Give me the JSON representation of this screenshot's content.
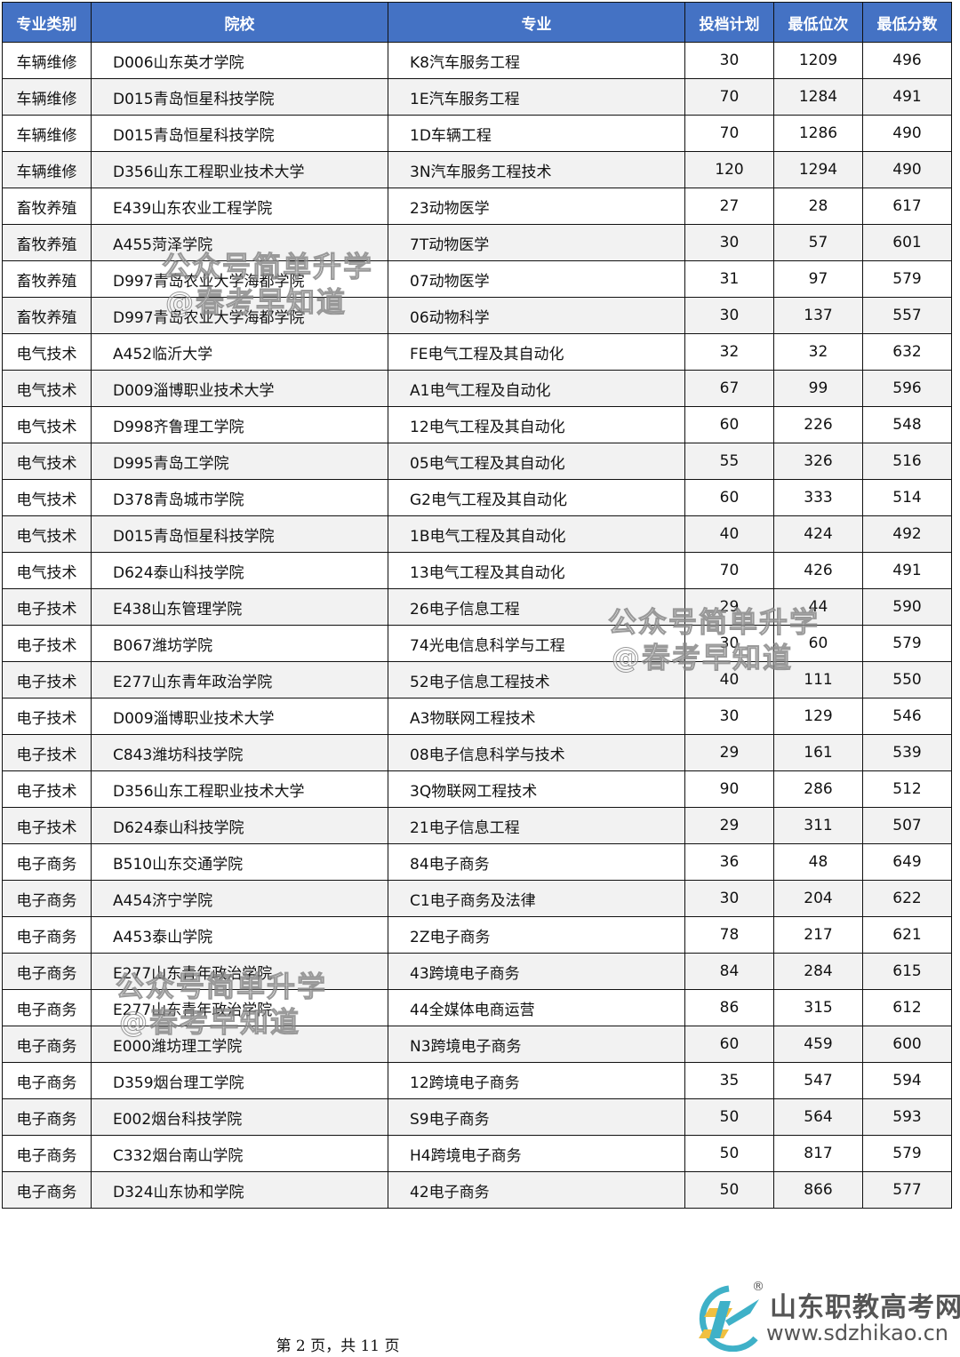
{
  "table": {
    "headers": [
      "专业类别",
      "院校",
      "专业",
      "投档计划",
      "最低位次",
      "最低分数"
    ],
    "rows": [
      [
        "车辆维修",
        "D006山东英才学院",
        "K8汽车服务工程",
        "30",
        "1209",
        "496"
      ],
      [
        "车辆维修",
        "D015青岛恒星科技学院",
        "1E汽车服务工程",
        "70",
        "1284",
        "491"
      ],
      [
        "车辆维修",
        "D015青岛恒星科技学院",
        "1D车辆工程",
        "70",
        "1286",
        "490"
      ],
      [
        "车辆维修",
        "D356山东工程职业技术大学",
        "3N汽车服务工程技术",
        "120",
        "1294",
        "490"
      ],
      [
        "畜牧养殖",
        "E439山东农业工程学院",
        "23动物医学",
        "27",
        "28",
        "617"
      ],
      [
        "畜牧养殖",
        "A455菏泽学院",
        "7T动物医学",
        "30",
        "57",
        "601"
      ],
      [
        "畜牧养殖",
        "D997青岛农业大学海都学院",
        "07动物医学",
        "31",
        "97",
        "579"
      ],
      [
        "畜牧养殖",
        "D997青岛农业大学海都学院",
        "06动物科学",
        "30",
        "137",
        "557"
      ],
      [
        "电气技术",
        "A452临沂大学",
        "FE电气工程及其自动化",
        "32",
        "32",
        "632"
      ],
      [
        "电气技术",
        "D009淄博职业技术大学",
        "A1电气工程及自动化",
        "67",
        "99",
        "596"
      ],
      [
        "电气技术",
        "D998齐鲁理工学院",
        "12电气工程及其自动化",
        "60",
        "226",
        "548"
      ],
      [
        "电气技术",
        "D995青岛工学院",
        "05电气工程及其自动化",
        "55",
        "326",
        "516"
      ],
      [
        "电气技术",
        "D378青岛城市学院",
        "G2电气工程及其自动化",
        "60",
        "333",
        "514"
      ],
      [
        "电气技术",
        "D015青岛恒星科技学院",
        "1B电气工程及其自动化",
        "40",
        "424",
        "492"
      ],
      [
        "电气技术",
        "D624泰山科技学院",
        "13电气工程及其自动化",
        "70",
        "426",
        "491"
      ],
      [
        "电子技术",
        "E438山东管理学院",
        "26电子信息工程",
        "29",
        "44",
        "590"
      ],
      [
        "电子技术",
        "B067潍坊学院",
        "74光电信息科学与工程",
        "30",
        "60",
        "579"
      ],
      [
        "电子技术",
        "E277山东青年政治学院",
        "52电子信息工程技术",
        "40",
        "111",
        "550"
      ],
      [
        "电子技术",
        "D009淄博职业技术大学",
        "A3物联网工程技术",
        "30",
        "129",
        "546"
      ],
      [
        "电子技术",
        "C843潍坊科技学院",
        "08电子信息科学与技术",
        "29",
        "161",
        "539"
      ],
      [
        "电子技术",
        "D356山东工程职业技术大学",
        "3Q物联网工程技术",
        "90",
        "286",
        "512"
      ],
      [
        "电子技术",
        "D624泰山科技学院",
        "21电子信息工程",
        "29",
        "311",
        "507"
      ],
      [
        "电子商务",
        "B510山东交通学院",
        "84电子商务",
        "36",
        "48",
        "649"
      ],
      [
        "电子商务",
        "A454济宁学院",
        "C1电子商务及法律",
        "30",
        "204",
        "622"
      ],
      [
        "电子商务",
        "A453泰山学院",
        "2Z电子商务",
        "78",
        "217",
        "621"
      ],
      [
        "电子商务",
        "E277山东青年政治学院",
        "43跨境电子商务",
        "84",
        "284",
        "615"
      ],
      [
        "电子商务",
        "E277山东青年政治学院",
        "44全媒体电商运营",
        "86",
        "315",
        "612"
      ],
      [
        "电子商务",
        "E000潍坊理工学院",
        "N3跨境电子商务",
        "60",
        "459",
        "600"
      ],
      [
        "电子商务",
        "D359烟台理工学院",
        "12跨境电子商务",
        "35",
        "547",
        "594"
      ],
      [
        "电子商务",
        "E002烟台科技学院",
        "S9电子商务",
        "50",
        "564",
        "593"
      ],
      [
        "电子商务",
        "C332烟台南山学院",
        "H4跨境电子商务",
        "50",
        "817",
        "579"
      ],
      [
        "电子商务",
        "D324山东协和学院",
        "42电子商务",
        "50",
        "866",
        "577"
      ]
    ]
  },
  "watermark": {
    "line1": "公众号简单升学",
    "line2": "@春考早知道"
  },
  "footer": {
    "page_text": "第 2 页，共 11 页"
  },
  "logo": {
    "title": "山东职教高考网",
    "url": "www.sdzhikao.cn",
    "registered": "®"
  },
  "colors": {
    "header_bg": "#4472c4",
    "alt_row_bg": "#f2f2f2"
  }
}
